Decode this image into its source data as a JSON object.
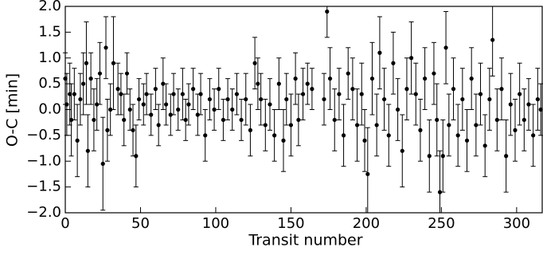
{
  "chart_data": {
    "type": "errorbar-scatter",
    "xlabel": "Transit number",
    "ylabel": "O-C [min]",
    "color": "#000000",
    "xlim": [
      0,
      317
    ],
    "ylim": [
      -2.0,
      2.0
    ],
    "xticks": [
      0,
      50,
      100,
      150,
      200,
      250,
      300
    ],
    "yticks": [
      {
        "value": -2.0,
        "label": "−2.0"
      },
      {
        "value": -1.5,
        "label": "−1.5"
      },
      {
        "value": -1.0,
        "label": "−1.0"
      },
      {
        "value": -0.5,
        "label": "−0.5"
      },
      {
        "value": 0.0,
        "label": "0.0"
      },
      {
        "value": 0.5,
        "label": "0.5"
      },
      {
        "value": 1.0,
        "label": "1.0"
      },
      {
        "value": 1.5,
        "label": "1.5"
      },
      {
        "value": 2.0,
        "label": "2.0"
      }
    ],
    "x": [
      0,
      1,
      3,
      4,
      6,
      8,
      10,
      12,
      14,
      15,
      17,
      19,
      21,
      23,
      25,
      27,
      28,
      30,
      32,
      35,
      37,
      39,
      41,
      43,
      45,
      47,
      49,
      52,
      54,
      57,
      60,
      62,
      65,
      67,
      70,
      72,
      75,
      78,
      80,
      82,
      85,
      88,
      90,
      93,
      96,
      99,
      102,
      105,
      108,
      111,
      114,
      117,
      120,
      123,
      126,
      128,
      130,
      133,
      136,
      139,
      142,
      145,
      147,
      150,
      153,
      155,
      158,
      161,
      164,
      172,
      174,
      176,
      179,
      182,
      185,
      188,
      191,
      194,
      197,
      199,
      201,
      204,
      207,
      209,
      212,
      215,
      218,
      221,
      224,
      227,
      230,
      233,
      236,
      239,
      242,
      245,
      247,
      249,
      251,
      253,
      255,
      258,
      261,
      264,
      267,
      270,
      273,
      276,
      279,
      282,
      284,
      287,
      290,
      293,
      296,
      299,
      302,
      305,
      308,
      311,
      314,
      316
    ],
    "values": [
      0.6,
      0.1,
      0.3,
      -0.2,
      0.3,
      -0.6,
      0.2,
      0.5,
      0.9,
      -0.8,
      0.6,
      -0.2,
      0.1,
      0.7,
      -1.05,
      1.2,
      -0.4,
      0.0,
      0.9,
      0.4,
      0.3,
      -0.2,
      0.7,
      0.0,
      -0.4,
      -0.9,
      0.2,
      0.1,
      0.3,
      -0.1,
      0.4,
      -0.3,
      0.5,
      0.1,
      -0.1,
      0.3,
      0.0,
      0.3,
      -0.2,
      0.1,
      0.4,
      -0.1,
      0.3,
      -0.5,
      0.2,
      0.0,
      0.4,
      -0.2,
      0.2,
      0.0,
      0.3,
      -0.2,
      0.2,
      -0.4,
      0.9,
      0.5,
      0.2,
      -0.3,
      0.1,
      -0.5,
      0.5,
      -0.6,
      0.2,
      -0.3,
      0.6,
      -0.2,
      0.3,
      0.5,
      0.4,
      0.2,
      1.9,
      0.6,
      -0.2,
      0.3,
      -0.5,
      0.7,
      0.4,
      -0.3,
      0.3,
      -0.6,
      -1.25,
      0.6,
      -0.3,
      1.1,
      0.2,
      -0.5,
      0.9,
      0.0,
      -0.8,
      0.4,
      1.0,
      0.3,
      -0.4,
      0.6,
      -0.9,
      0.7,
      -0.2,
      -1.6,
      -0.9,
      1.2,
      -0.3,
      0.4,
      -0.5,
      0.2,
      -0.6,
      0.6,
      -0.3,
      0.3,
      -0.7,
      0.2,
      1.35,
      -0.2,
      0.4,
      -0.9,
      0.1,
      -0.4,
      0.3,
      -0.2,
      0.1,
      -0.5,
      0.2,
      0.0
    ],
    "errors": [
      0.5,
      0.6,
      0.6,
      0.7,
      0.5,
      0.7,
      0.5,
      0.6,
      0.8,
      0.7,
      0.5,
      0.6,
      0.5,
      0.6,
      0.9,
      0.6,
      0.6,
      0.5,
      0.9,
      0.5,
      0.4,
      0.5,
      0.4,
      0.4,
      0.5,
      0.6,
      0.4,
      0.4,
      0.4,
      0.4,
      0.4,
      0.4,
      0.5,
      0.4,
      0.4,
      0.4,
      0.4,
      0.5,
      0.4,
      0.4,
      0.4,
      0.4,
      0.4,
      0.5,
      0.4,
      0.4,
      0.4,
      0.4,
      0.4,
      0.4,
      0.4,
      0.4,
      0.5,
      0.5,
      0.5,
      0.5,
      0.5,
      0.5,
      0.5,
      0.5,
      0.5,
      0.6,
      0.5,
      0.6,
      0.5,
      0.5,
      0.5,
      0.4,
      0.4,
      0.5,
      0.5,
      0.6,
      0.6,
      0.5,
      0.6,
      0.5,
      0.6,
      0.7,
      0.6,
      0.6,
      0.9,
      0.7,
      0.6,
      0.7,
      0.6,
      0.6,
      0.6,
      0.6,
      0.7,
      0.6,
      0.7,
      0.6,
      0.6,
      0.6,
      0.7,
      0.6,
      0.7,
      0.8,
      0.7,
      0.7,
      0.6,
      0.6,
      0.6,
      0.6,
      0.6,
      0.6,
      0.6,
      0.6,
      0.6,
      0.6,
      0.7,
      0.6,
      0.6,
      0.7,
      0.6,
      0.6,
      0.6,
      0.6,
      0.5,
      0.6,
      0.6,
      0.5
    ]
  }
}
